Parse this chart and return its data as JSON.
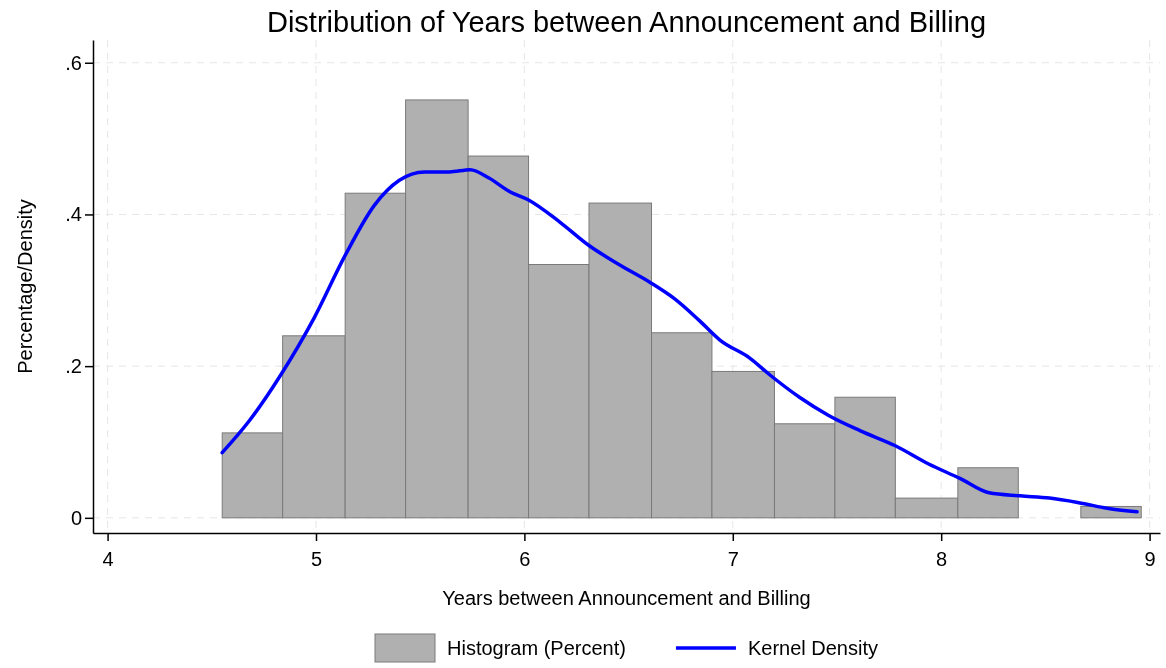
{
  "chart_data": {
    "type": "histogram",
    "title": "Distribution of Years between Announcement and Billing",
    "xlabel": "Years between Announcement and Billing",
    "ylabel": "Percentage/Density",
    "bins": [
      4.55,
      4.84,
      5.14,
      5.43,
      5.73,
      6.02,
      6.31,
      6.61,
      6.9,
      7.2,
      7.49,
      7.78,
      8.08,
      8.37,
      8.67,
      8.96
    ],
    "series": [
      {
        "name": "Histogram (Percent)",
        "color": "#b0b0b0",
        "values": [
          0.112,
          0.24,
          0.428,
          0.551,
          0.477,
          0.334,
          0.415,
          0.244,
          0.193,
          0.124,
          0.159,
          0.026,
          0.066,
          0,
          0.015
        ]
      },
      {
        "name": "Kernel Density",
        "type": "line",
        "color": "#0000ff",
        "x": [
          4.55,
          4.68,
          4.83,
          4.99,
          5.14,
          5.28,
          5.4,
          5.52,
          5.64,
          5.74,
          5.83,
          5.93,
          6.02,
          6.17,
          6.31,
          6.46,
          6.6,
          6.72,
          6.84,
          6.94,
          7.08,
          7.18,
          7.32,
          7.46,
          7.61,
          7.78,
          7.94,
          8.09,
          8.23,
          8.38,
          8.52,
          8.66,
          8.81,
          8.94
        ],
        "values": [
          0.086,
          0.128,
          0.188,
          0.263,
          0.346,
          0.412,
          0.445,
          0.456,
          0.456,
          0.459,
          0.448,
          0.43,
          0.419,
          0.39,
          0.359,
          0.333,
          0.311,
          0.289,
          0.26,
          0.234,
          0.211,
          0.188,
          0.159,
          0.135,
          0.115,
          0.095,
          0.071,
          0.052,
          0.033,
          0.029,
          0.026,
          0.02,
          0.012,
          0.008
        ]
      }
    ],
    "xlim": [
      3.93,
      9.05
    ],
    "xticks": [
      4,
      5,
      6,
      7,
      8,
      9
    ],
    "ylim": [
      -0.02,
      0.63
    ],
    "yticks": [
      {
        "value": 0,
        "label": "0"
      },
      {
        "value": 0.2,
        "label": ".2"
      },
      {
        "value": 0.4,
        "label": ".4"
      },
      {
        "value": 0.6,
        "label": ".6"
      }
    ],
    "grid": true,
    "legend": "bottom",
    "line_style": "solid"
  }
}
